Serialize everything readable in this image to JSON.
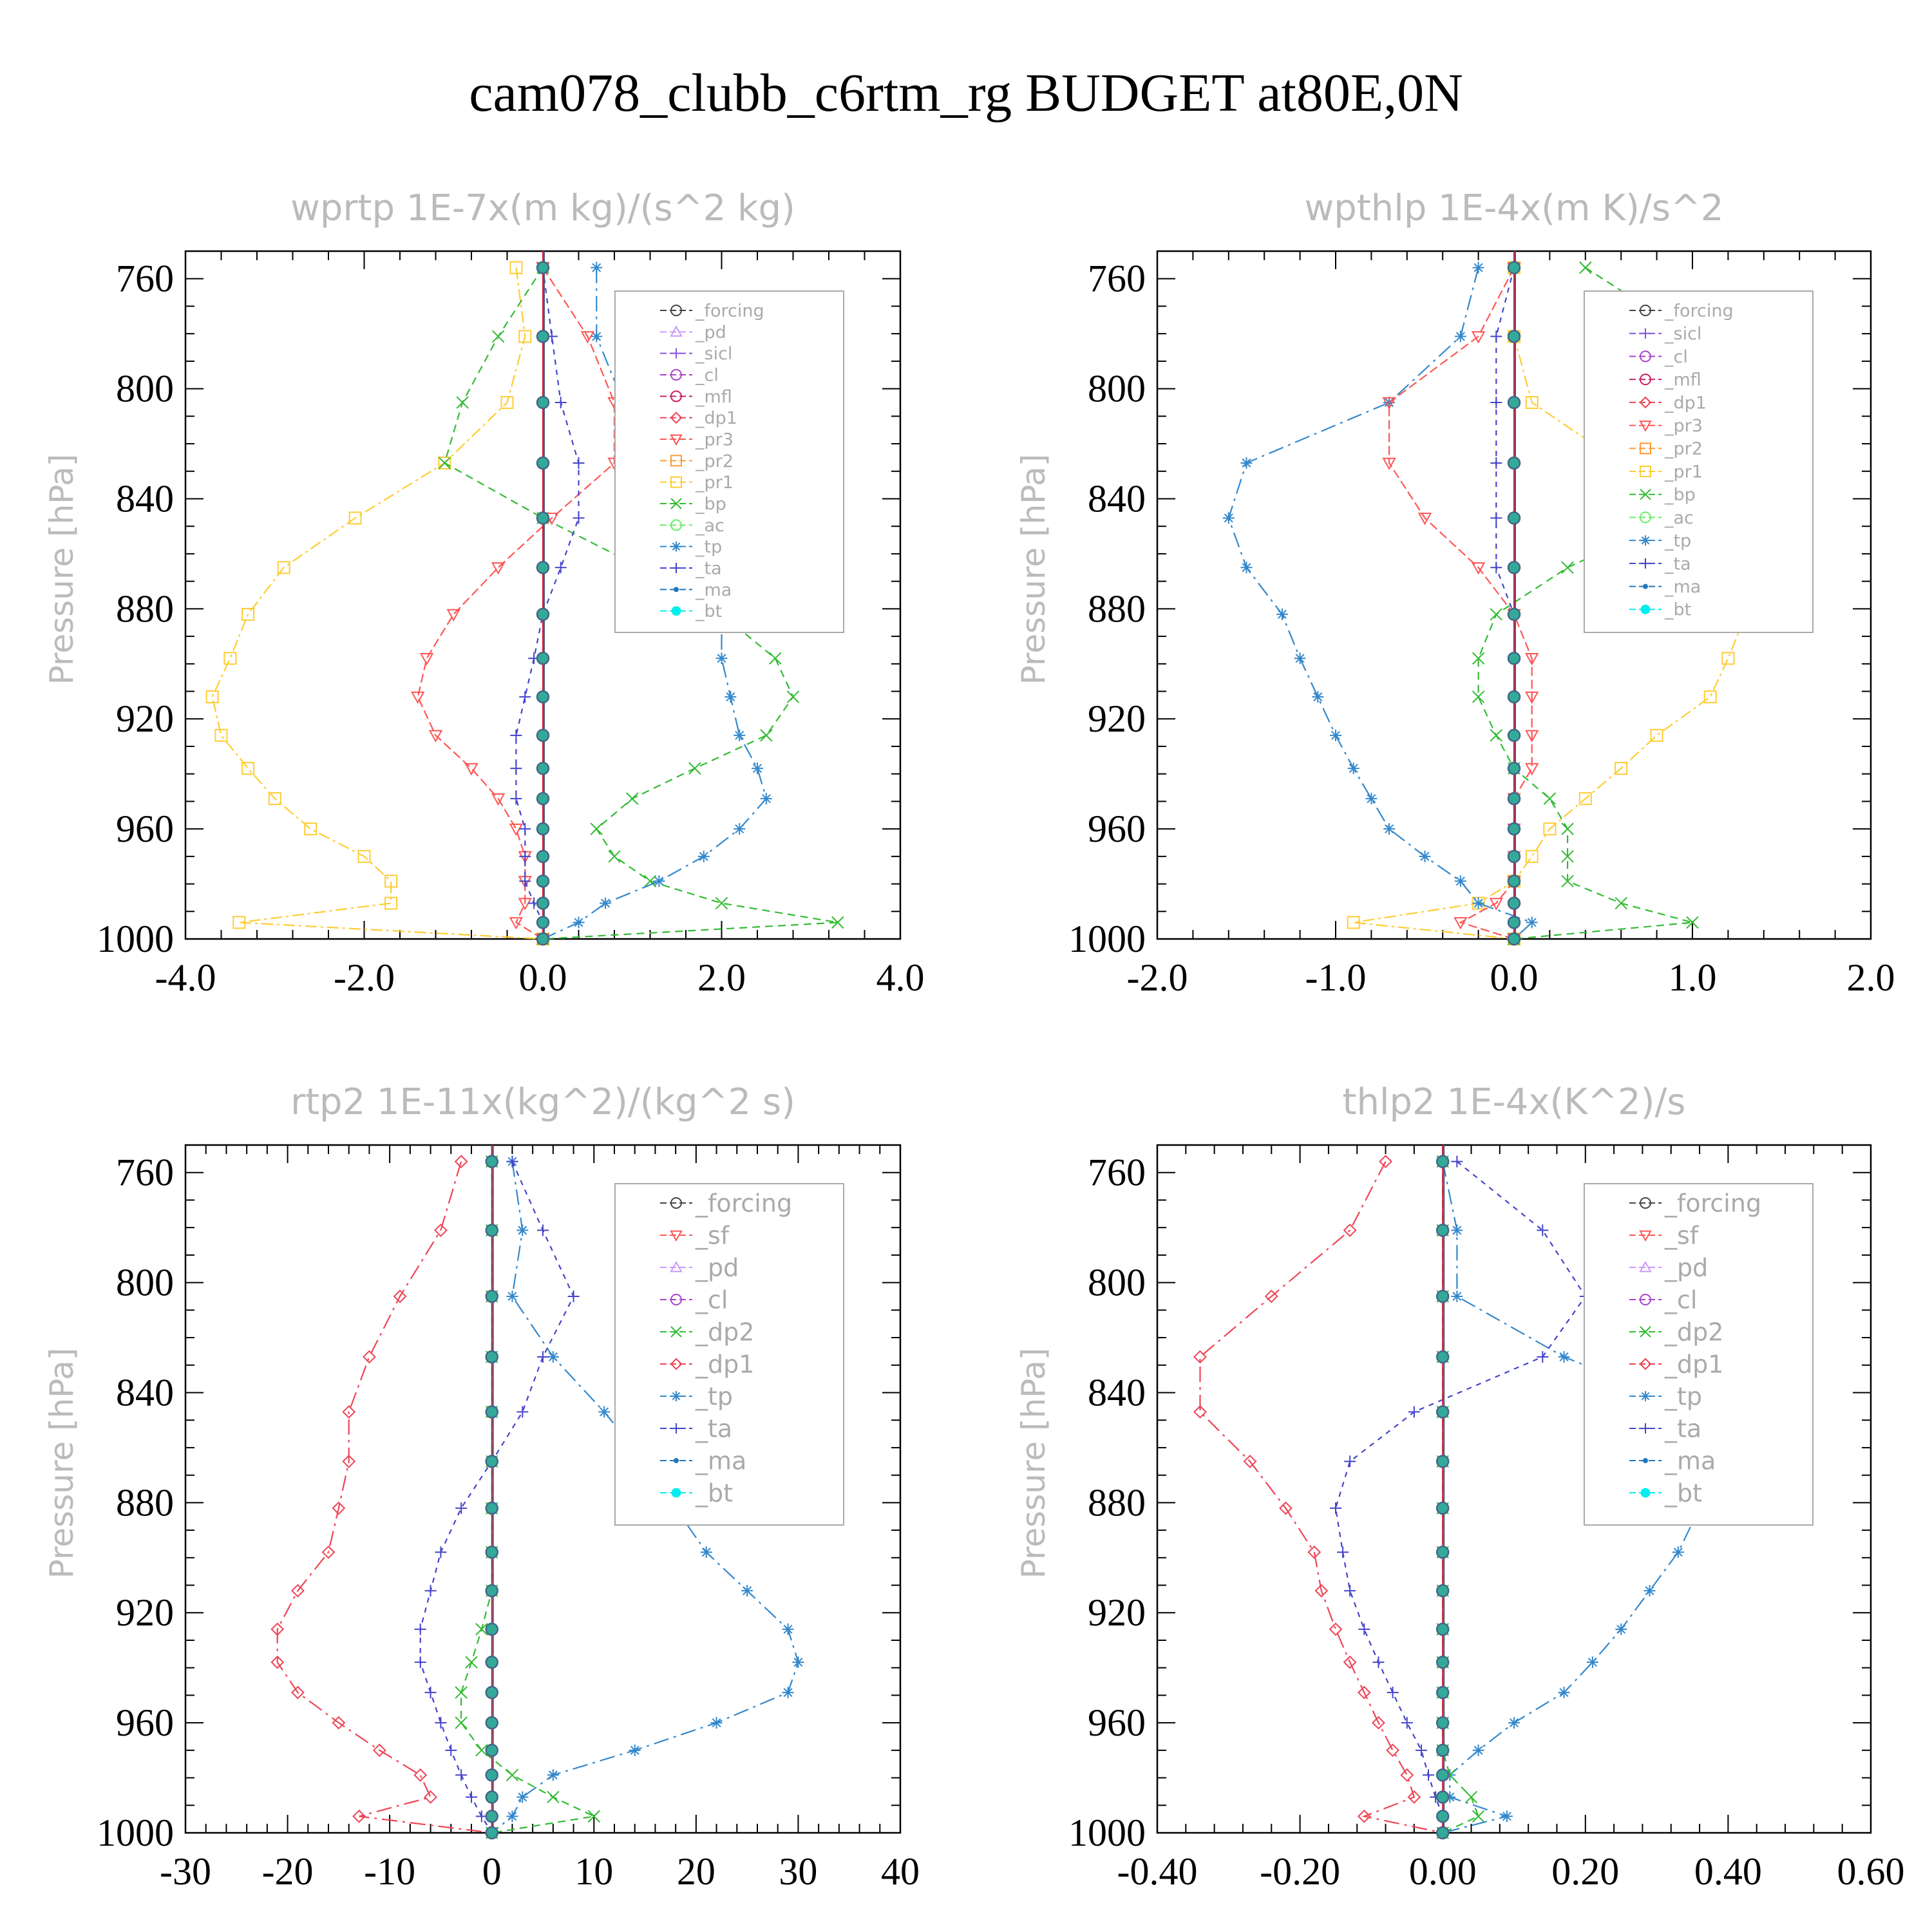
{
  "title": "cam078_clubb_c6rtm_rg  BUDGET at80E,0N",
  "colors": {
    "_forcing": "#444444",
    "_pd": "#cc99ff",
    "_sicl": "#8855dd",
    "_cl": "#aa44cc",
    "_mfl": "#cc2266",
    "_dp1": "#ee4455",
    "_pr3": "#ff5555",
    "_pr2": "#ff9933",
    "_pr1": "#ffcc33",
    "_bp": "#33bb33",
    "_ac": "#66ee66",
    "_tp": "#3388cc",
    "_ta": "#4444cc",
    "_ma": "#2277bb",
    "_bt": "#00eeee",
    "_sf": "#ff5555",
    "_dp2": "#33bb33"
  },
  "chart_data": [
    {
      "type": "line",
      "title": "wprtp  1E-7x(m kg)/(s^2 kg)",
      "ylabel": "Pressure [hPa]",
      "xlim": [
        -4,
        4
      ],
      "ylim": [
        750,
        1000
      ],
      "y_inverted": true,
      "xticks": [
        "-4.0",
        "-2.0",
        "0.0",
        "2.0",
        "4.0"
      ],
      "yticks": [
        "760",
        "800",
        "840",
        "880",
        "920",
        "960",
        "1000"
      ],
      "legend": [
        "_forcing",
        "_pd",
        "_sicl",
        "_cl",
        "_mfl",
        "_dp1",
        "_pr3",
        "_pr2",
        "_pr1",
        "_bp",
        "_ac",
        "_tp",
        "_ta",
        "_ma",
        "_bt"
      ],
      "levels": [
        756,
        781,
        805,
        827,
        847,
        865,
        882,
        898,
        912,
        926,
        938,
        949,
        960,
        970,
        979,
        987,
        994,
        1000
      ],
      "series": [
        {
          "name": "_pr1",
          "x": [
            -0.3,
            -0.2,
            -0.4,
            -1.1,
            -2.1,
            -2.9,
            -3.3,
            -3.5,
            -3.7,
            -3.6,
            -3.3,
            -3.0,
            -2.6,
            -2.0,
            -1.7,
            -1.7,
            -3.4,
            0.0
          ]
        },
        {
          "name": "_bp",
          "x": [
            0.0,
            -0.5,
            -0.9,
            -1.1,
            0.0,
            1.1,
            2.0,
            2.6,
            2.8,
            2.5,
            1.7,
            1.0,
            0.6,
            0.8,
            1.2,
            2.0,
            3.3,
            0.0
          ]
        },
        {
          "name": "_tp",
          "x": [
            0.6,
            0.6,
            0.9,
            1.4,
            1.7,
            1.9,
            2.0,
            2.0,
            2.1,
            2.2,
            2.4,
            2.5,
            2.2,
            1.8,
            1.3,
            0.7,
            0.4,
            0.0
          ]
        },
        {
          "name": "_pr3",
          "x": [
            0.0,
            0.5,
            0.8,
            0.8,
            0.1,
            -0.5,
            -1.0,
            -1.3,
            -1.4,
            -1.2,
            -0.8,
            -0.5,
            -0.3,
            -0.2,
            -0.2,
            -0.2,
            -0.3,
            0.0
          ]
        },
        {
          "name": "_ta",
          "x": [
            0.0,
            0.1,
            0.2,
            0.4,
            0.4,
            0.2,
            0.0,
            -0.1,
            -0.2,
            -0.3,
            -0.3,
            -0.3,
            -0.2,
            -0.2,
            -0.2,
            -0.1,
            0.0,
            0.0
          ]
        }
      ]
    },
    {
      "type": "line",
      "title": "wpthlp  1E-4x(m K)/s^2",
      "ylabel": "Pressure [hPa]",
      "xlim": [
        -2,
        2
      ],
      "ylim": [
        750,
        1000
      ],
      "y_inverted": true,
      "xticks": [
        "-2.0",
        "-1.0",
        "0.0",
        "1.0",
        "2.0"
      ],
      "yticks": [
        "760",
        "800",
        "840",
        "880",
        "920",
        "960",
        "1000"
      ],
      "legend": [
        "_forcing",
        "_sicl",
        "_cl",
        "_mfl",
        "_dp1",
        "_pr3",
        "_pr2",
        "_pr1",
        "_bp",
        "_ac",
        "_tp",
        "_ta",
        "_ma",
        "_bt"
      ],
      "levels": [
        756,
        781,
        805,
        827,
        847,
        865,
        882,
        898,
        912,
        926,
        938,
        949,
        960,
        970,
        979,
        987,
        994,
        1000
      ],
      "series": [
        {
          "name": "_pr1",
          "x": [
            0.0,
            0.0,
            0.1,
            0.6,
            1.0,
            1.3,
            1.3,
            1.2,
            1.1,
            0.8,
            0.6,
            0.4,
            0.2,
            0.1,
            0.0,
            -0.2,
            -0.9,
            0.0
          ]
        },
        {
          "name": "_bp",
          "x": [
            0.4,
            1.0,
            1.4,
            1.6,
            0.9,
            0.3,
            -0.1,
            -0.2,
            -0.2,
            -0.1,
            0.0,
            0.2,
            0.3,
            0.3,
            0.3,
            0.6,
            1.0,
            0.0
          ]
        },
        {
          "name": "_tp",
          "x": [
            -0.2,
            -0.3,
            -0.7,
            -1.5,
            -1.6,
            -1.5,
            -1.3,
            -1.2,
            -1.1,
            -1.0,
            -0.9,
            -0.8,
            -0.7,
            -0.5,
            -0.3,
            -0.2,
            0.1,
            0.0
          ]
        },
        {
          "name": "_pr3",
          "x": [
            0.0,
            -0.2,
            -0.7,
            -0.7,
            -0.5,
            -0.2,
            0.0,
            0.1,
            0.1,
            0.1,
            0.1,
            0.0,
            0.0,
            0.0,
            0.0,
            -0.1,
            -0.3,
            0.0
          ]
        },
        {
          "name": "_ta",
          "x": [
            0.0,
            -0.1,
            -0.1,
            -0.1,
            -0.1,
            -0.1,
            0.0,
            0.0,
            0.0,
            0.0,
            0.0,
            0.0,
            0.0,
            0.0,
            0.0,
            0.0,
            0.0,
            0.0
          ]
        }
      ]
    },
    {
      "type": "line",
      "title": "rtp2  1E-11x(kg^2)/(kg^2 s)",
      "ylabel": "Pressure [hPa]",
      "xlim": [
        -30,
        40
      ],
      "ylim": [
        750,
        1000
      ],
      "y_inverted": true,
      "xticks": [
        "-30",
        "-20",
        "-10",
        "0",
        "10",
        "20",
        "30",
        "40"
      ],
      "yticks": [
        "760",
        "800",
        "840",
        "880",
        "920",
        "960",
        "1000"
      ],
      "legend": [
        "_forcing",
        "_sf",
        "_pd",
        "_cl",
        "_dp2",
        "_dp1",
        "_tp",
        "_ta",
        "_ma",
        "_bt"
      ],
      "levels": [
        756,
        781,
        805,
        827,
        847,
        865,
        882,
        898,
        912,
        926,
        938,
        949,
        960,
        970,
        979,
        987,
        994,
        1000
      ],
      "series": [
        {
          "name": "_dp1",
          "x": [
            -3,
            -5,
            -9,
            -12,
            -14,
            -14,
            -15,
            -16,
            -19,
            -21,
            -21,
            -19,
            -15,
            -11,
            -7,
            -6,
            -13,
            0
          ]
        },
        {
          "name": "_tp",
          "x": [
            2,
            3,
            2,
            6,
            11,
            15,
            18,
            21,
            25,
            29,
            30,
            29,
            22,
            14,
            6,
            3,
            2,
            0
          ]
        },
        {
          "name": "_ta",
          "x": [
            2,
            5,
            8,
            5,
            3,
            0,
            -3,
            -5,
            -6,
            -7,
            -7,
            -6,
            -5,
            -4,
            -3,
            -2,
            -1,
            0
          ]
        },
        {
          "name": "_dp2",
          "x": [
            0,
            0,
            0,
            0,
            0,
            0,
            0,
            0,
            0,
            -1,
            -2,
            -3,
            -3,
            -1,
            2,
            6,
            10,
            0
          ]
        }
      ]
    },
    {
      "type": "line",
      "title": "thlp2  1E-4x(K^2)/s",
      "ylabel": "Pressure [hPa]",
      "xlim": [
        -0.4,
        0.6
      ],
      "ylim": [
        750,
        1000
      ],
      "y_inverted": true,
      "xticks": [
        "-0.40",
        "-0.20",
        "0.00",
        "0.20",
        "0.40",
        "0.60"
      ],
      "yticks": [
        "760",
        "800",
        "840",
        "880",
        "920",
        "960",
        "1000"
      ],
      "legend": [
        "_forcing",
        "_sf",
        "_pd",
        "_cl",
        "_dp2",
        "_dp1",
        "_tp",
        "_ta",
        "_ma",
        "_bt"
      ],
      "levels": [
        756,
        781,
        805,
        827,
        847,
        865,
        882,
        898,
        912,
        926,
        938,
        949,
        960,
        970,
        979,
        987,
        994,
        1000
      ],
      "series": [
        {
          "name": "_dp1",
          "x": [
            -0.08,
            -0.13,
            -0.24,
            -0.34,
            -0.34,
            -0.27,
            -0.22,
            -0.18,
            -0.17,
            -0.15,
            -0.13,
            -0.11,
            -0.09,
            -0.07,
            -0.05,
            -0.04,
            -0.11,
            0.0
          ]
        },
        {
          "name": "_tp",
          "x": [
            0.0,
            0.02,
            0.02,
            0.17,
            0.36,
            0.4,
            0.36,
            0.33,
            0.29,
            0.25,
            0.21,
            0.17,
            0.1,
            0.05,
            0.01,
            0.01,
            0.09,
            0.0
          ]
        },
        {
          "name": "_ta",
          "x": [
            0.02,
            0.14,
            0.2,
            0.14,
            -0.04,
            -0.13,
            -0.15,
            -0.14,
            -0.13,
            -0.11,
            -0.09,
            -0.07,
            -0.05,
            -0.03,
            -0.02,
            -0.01,
            0.0,
            0.0
          ]
        },
        {
          "name": "_dp2",
          "x": [
            0.0,
            0.0,
            0.0,
            0.0,
            0.0,
            0.0,
            0.0,
            0.0,
            0.0,
            0.0,
            0.0,
            0.0,
            0.0,
            0.0,
            0.01,
            0.04,
            0.05,
            0.0
          ]
        }
      ]
    }
  ]
}
